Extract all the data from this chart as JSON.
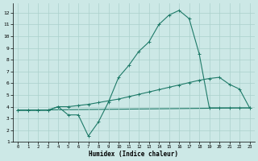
{
  "xlabel": "Humidex (Indice chaleur)",
  "xlim": [
    -0.5,
    23.5
  ],
  "ylim": [
    1,
    12.8
  ],
  "xticks": [
    0,
    1,
    2,
    3,
    4,
    5,
    6,
    7,
    8,
    9,
    10,
    11,
    12,
    13,
    14,
    15,
    16,
    17,
    18,
    19,
    20,
    21,
    22,
    23
  ],
  "yticks": [
    1,
    2,
    3,
    4,
    5,
    6,
    7,
    8,
    9,
    10,
    11,
    12
  ],
  "bg_color": "#cce8e6",
  "grid_color": "#aad0cc",
  "line_color": "#1e7a68",
  "line1_x": [
    0,
    1,
    2,
    3,
    4,
    5,
    6,
    7,
    8,
    9,
    10,
    11,
    12,
    13,
    14,
    15,
    16,
    17,
    18,
    19,
    20,
    21,
    22,
    23
  ],
  "line1_y": [
    3.7,
    3.7,
    3.7,
    3.7,
    4.0,
    3.3,
    3.3,
    1.5,
    2.7,
    4.4,
    6.5,
    7.5,
    8.7,
    9.5,
    11.0,
    11.8,
    12.2,
    11.5,
    8.5,
    3.9,
    3.9,
    3.9,
    3.9,
    3.9
  ],
  "line2_x": [
    0,
    1,
    2,
    3,
    4,
    5,
    6,
    7,
    8,
    9,
    10,
    11,
    12,
    13,
    14,
    15,
    16,
    17,
    18,
    19,
    20,
    21,
    22,
    23
  ],
  "line2_y": [
    3.7,
    3.7,
    3.7,
    3.7,
    4.0,
    4.0,
    4.1,
    4.2,
    4.35,
    4.5,
    4.65,
    4.85,
    5.05,
    5.25,
    5.45,
    5.65,
    5.85,
    6.05,
    6.25,
    6.4,
    6.5,
    5.9,
    5.5,
    3.9
  ],
  "line3_x": [
    0,
    23
  ],
  "line3_y": [
    3.7,
    3.9
  ]
}
